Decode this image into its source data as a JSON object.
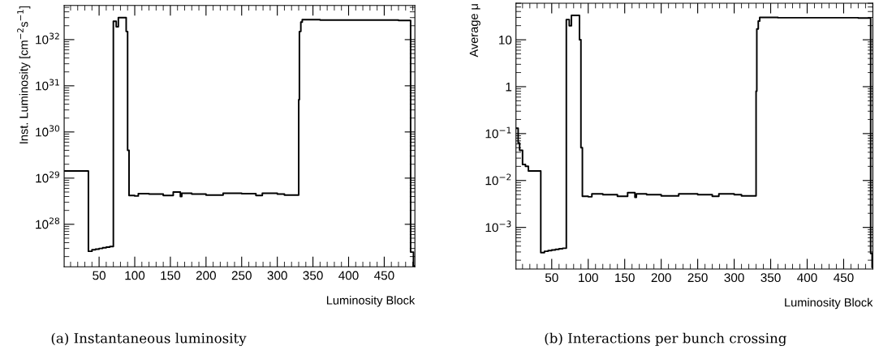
{
  "chart_data": [
    {
      "type": "step",
      "xlabel": "Luminosity Block",
      "ylabel": "Inst. Luminosity [cm$^{−2}$s$^{−1}$]",
      "log": "y",
      "grid": false,
      "color": "#000000",
      "xlim": [
        1,
        493
      ],
      "ylim": [
        1.2e+27,
        5.5e+32
      ],
      "xticks": [
        50,
        100,
        150,
        200,
        250,
        300,
        350,
        400,
        450
      ],
      "yticks": [
        {
          "value": 1e+28,
          "label": "10$^{28}$"
        },
        {
          "value": 1e+29,
          "label": "10$^{29}$"
        },
        {
          "value": 1e+30,
          "label": "10$^{30}$"
        },
        {
          "value": 1e+31,
          "label": "10$^{31}$"
        },
        {
          "value": 1e+32,
          "label": "10$^{32}$"
        }
      ],
      "x": [
        1,
        35,
        40,
        45,
        50,
        55,
        60,
        65,
        70,
        74,
        77,
        88,
        90,
        92,
        100,
        105,
        120,
        140,
        154,
        164,
        166,
        180,
        200,
        224,
        250,
        270,
        279,
        300,
        310,
        330,
        331,
        333,
        335,
        360,
        470,
        487,
        491,
        492
      ],
      "values": [
        1.43e+29,
        2.6e+27,
        2.8e+27,
        2.9e+27,
        3e+27,
        3.1e+27,
        3.2e+27,
        3.3e+27,
        2.5e+32,
        1.9e+32,
        3e+32,
        1.5e+32,
        4e+29,
        4.2e+28,
        4.1e+28,
        4.6e+28,
        4.5e+28,
        4.2e+28,
        5e+28,
        4e+28,
        4.7e+28,
        4.5e+28,
        4.3e+28,
        4.7e+28,
        4.6e+28,
        4.2e+28,
        4.7e+28,
        4.5e+28,
        4.3e+28,
        5e+30,
        1.5e+32,
        2.4e+32,
        2.7e+32,
        2.65e+32,
        2.6e+32,
        2.5e+27,
        1.25e+27,
        1.25e+27
      ],
      "annotations": [
        "(a) Instantaneous luminosity"
      ]
    },
    {
      "type": "step",
      "xlabel": "Luminosity Block",
      "ylabel": "Average μ",
      "log": "y",
      "grid": false,
      "color": "#000000",
      "xlim": [
        1,
        490
      ],
      "ylim": [
        0.00013,
        60
      ],
      "xticks": [
        50,
        100,
        150,
        200,
        250,
        300,
        350,
        400,
        450
      ],
      "yticks": [
        {
          "value": 0.001,
          "label": "10$^{−3}$"
        },
        {
          "value": 0.01,
          "label": "10$^{−2}$"
        },
        {
          "value": 0.1,
          "label": "10$^{−1}$"
        },
        1,
        10
      ],
      "x": [
        1,
        4,
        6,
        10,
        14,
        18,
        35,
        40,
        45,
        50,
        55,
        60,
        65,
        70,
        74,
        77,
        88,
        90,
        92,
        100,
        105,
        120,
        140,
        154,
        164,
        166,
        180,
        200,
        224,
        250,
        270,
        279,
        300,
        310,
        330,
        331,
        333,
        335,
        360,
        470,
        487,
        489,
        490
      ],
      "values": [
        0.13,
        0.063,
        0.044,
        0.022,
        0.02,
        0.016,
        0.00029,
        0.00031,
        0.00032,
        0.00033,
        0.00034,
        0.00035,
        0.00036,
        27,
        20,
        33,
        10,
        0.05,
        0.0046,
        0.0045,
        0.0052,
        0.005,
        0.0046,
        0.0055,
        0.0044,
        0.0052,
        0.005,
        0.0047,
        0.0052,
        0.005,
        0.0046,
        0.0052,
        0.005,
        0.0047,
        0.8,
        17,
        25,
        30,
        29.5,
        29,
        0.00028,
        0.00014,
        0.00014
      ],
      "annotations": [
        "(b) Interactions per bunch crossing"
      ]
    }
  ]
}
